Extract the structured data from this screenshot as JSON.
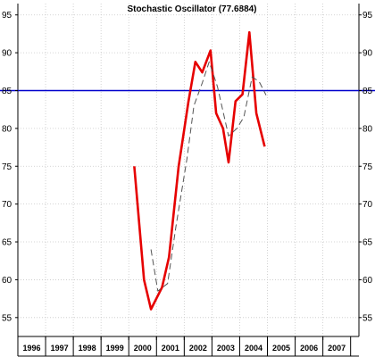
{
  "chart_data": {
    "type": "line",
    "title": "Stochastic Oscillator (77.6884)",
    "ylim": [
      52.5,
      96.5
    ],
    "y_ticks": [
      55,
      60,
      65,
      70,
      75,
      80,
      85,
      90,
      95
    ],
    "y_tick_labels": [
      "55",
      "60",
      "65",
      "70",
      "75",
      "80",
      "85",
      "90",
      "95"
    ],
    "x_range": [
      1996,
      2008.3
    ],
    "x_ticks": [
      "1996",
      "1997",
      "1998",
      "1999",
      "2000",
      "2001",
      "2002",
      "2003",
      "2004",
      "2005",
      "2006",
      "2007"
    ],
    "reference_line": {
      "value": 85,
      "color": "#0000cc"
    },
    "grid": true,
    "series": [
      {
        "style": "solid",
        "color": "#e60000",
        "points": [
          [
            2000.2,
            75.0
          ],
          [
            2000.55,
            60.0
          ],
          [
            2000.8,
            56.1
          ],
          [
            2001.2,
            59.0
          ],
          [
            2001.45,
            63.0
          ],
          [
            2001.8,
            75.0
          ],
          [
            2002.15,
            83.5
          ],
          [
            2002.4,
            88.8
          ],
          [
            2002.65,
            87.4
          ],
          [
            2002.95,
            90.3
          ],
          [
            2003.15,
            82.0
          ],
          [
            2003.4,
            80.0
          ],
          [
            2003.6,
            75.5
          ],
          [
            2003.85,
            83.6
          ],
          [
            2004.1,
            84.5
          ],
          [
            2004.35,
            92.7
          ],
          [
            2004.6,
            82.0
          ],
          [
            2004.9,
            77.6
          ]
        ]
      },
      {
        "style": "dashed",
        "color": "#555555",
        "points": [
          [
            2000.8,
            64.0
          ],
          [
            2001.05,
            58.5
          ],
          [
            2001.4,
            59.5
          ],
          [
            2001.7,
            67.0
          ],
          [
            2002.1,
            76.0
          ],
          [
            2002.35,
            83.0
          ],
          [
            2002.65,
            86.0
          ],
          [
            2002.9,
            88.8
          ],
          [
            2003.2,
            85.5
          ],
          [
            2003.6,
            79.0
          ],
          [
            2003.9,
            80.0
          ],
          [
            2004.15,
            81.5
          ],
          [
            2004.45,
            86.8
          ],
          [
            2004.7,
            86.2
          ],
          [
            2004.95,
            84.4
          ]
        ]
      }
    ]
  }
}
